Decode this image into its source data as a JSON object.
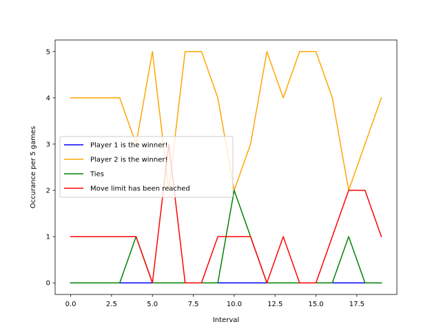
{
  "chart_data": {
    "type": "line",
    "xlabel": "Interval",
    "ylabel": "Occurance per 5 games",
    "xlim": [
      -0.95,
      19.95
    ],
    "ylim": [
      -0.25,
      5.25
    ],
    "xticks": [
      0,
      2.5,
      5,
      7.5,
      10,
      12.5,
      15,
      17.5
    ],
    "xtick_labels": [
      "0.0",
      "2.5",
      "5.0",
      "7.5",
      "10.0",
      "12.5",
      "15.0",
      "17.5"
    ],
    "yticks": [
      0,
      1,
      2,
      3,
      4,
      5
    ],
    "ytick_labels": [
      "0",
      "1",
      "2",
      "3",
      "4",
      "5"
    ],
    "grid": false,
    "legend_position": "center-left",
    "x": [
      0,
      1,
      2,
      3,
      4,
      5,
      6,
      7,
      8,
      9,
      10,
      11,
      12,
      13,
      14,
      15,
      16,
      17,
      18,
      19
    ],
    "series": [
      {
        "name": "Player 1 is the winner!",
        "color": "#0000ff",
        "values": [
          0,
          0,
          0,
          0,
          0,
          0,
          0,
          0,
          0,
          0,
          0,
          0,
          0,
          0,
          0,
          0,
          0,
          0,
          0,
          0
        ]
      },
      {
        "name": "Player 2 is the winner!",
        "color": "#ffa500",
        "values": [
          4,
          4,
          4,
          4,
          3,
          5,
          2,
          5,
          5,
          4,
          2,
          3,
          5,
          4,
          5,
          5,
          4,
          2,
          3,
          4
        ]
      },
      {
        "name": "Ties",
        "color": "#008000",
        "values": [
          0,
          0,
          0,
          0,
          1,
          0,
          0,
          0,
          0,
          0,
          2,
          1,
          0,
          0,
          0,
          0,
          0,
          1,
          0,
          0
        ]
      },
      {
        "name": "Move limit has been reached",
        "color": "#ff0000",
        "values": [
          1,
          1,
          1,
          1,
          1,
          0,
          3,
          0,
          0,
          1,
          1,
          1,
          0,
          1,
          0,
          0,
          1,
          2,
          2,
          1
        ]
      }
    ]
  }
}
